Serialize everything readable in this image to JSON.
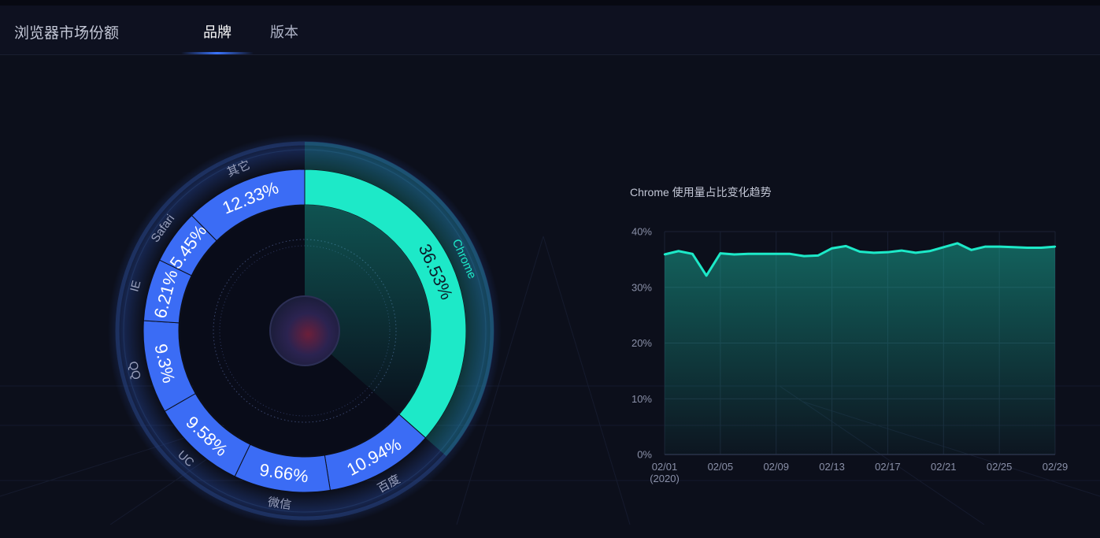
{
  "header": {
    "app_title": "浏览器市场份额",
    "tabs": [
      {
        "label": "品牌",
        "active": true
      },
      {
        "label": "版本",
        "active": false
      }
    ]
  },
  "colors": {
    "accent": "#1de9c8",
    "segment": "#3b6cf5",
    "background": "#0c0f1b"
  },
  "chart_data": [
    {
      "type": "pie",
      "variant": "donut",
      "title": "",
      "highlighted": "Chrome",
      "slices": [
        {
          "name": "Chrome",
          "value": 36.53,
          "label": "36.53%"
        },
        {
          "name": "百度",
          "value": 10.94,
          "label": "10.94%"
        },
        {
          "name": "微信",
          "value": 9.66,
          "label": "9.66%"
        },
        {
          "name": "UC",
          "value": 9.58,
          "label": "9.58%"
        },
        {
          "name": "QQ",
          "value": 9.3,
          "label": "9.3%"
        },
        {
          "name": "IE",
          "value": 6.21,
          "label": "6.21%"
        },
        {
          "name": "Safari",
          "value": 5.45,
          "label": "5.45%"
        },
        {
          "name": "其它",
          "value": 12.33,
          "label": "12.33%"
        }
      ]
    },
    {
      "type": "area",
      "title": "Chrome 使用量占比变化趋势",
      "xlabel": "",
      "ylabel": "",
      "ylim": [
        0,
        40
      ],
      "yticks": [
        "0%",
        "10%",
        "20%",
        "30%",
        "40%"
      ],
      "xticks": [
        "02/01",
        "02/05",
        "02/09",
        "02/13",
        "02/17",
        "02/21",
        "02/25",
        "02/29"
      ],
      "xtick_sub": "(2020)",
      "grid": true,
      "x": [
        "02/01",
        "02/02",
        "02/03",
        "02/04",
        "02/05",
        "02/06",
        "02/07",
        "02/08",
        "02/09",
        "02/10",
        "02/11",
        "02/12",
        "02/13",
        "02/14",
        "02/15",
        "02/16",
        "02/17",
        "02/18",
        "02/19",
        "02/20",
        "02/21",
        "02/22",
        "02/23",
        "02/24",
        "02/25",
        "02/26",
        "02/27",
        "02/28",
        "02/29"
      ],
      "series": [
        {
          "values": [
            35.9,
            36.5,
            36.0,
            32.1,
            36.1,
            35.9,
            36.0,
            36.0,
            36.0,
            36.0,
            35.6,
            35.7,
            37.0,
            37.4,
            36.4,
            36.2,
            36.3,
            36.6,
            36.2,
            36.5,
            37.2,
            37.9,
            36.7,
            37.3,
            37.3,
            37.2,
            37.1,
            37.1,
            37.3
          ]
        }
      ]
    }
  ]
}
